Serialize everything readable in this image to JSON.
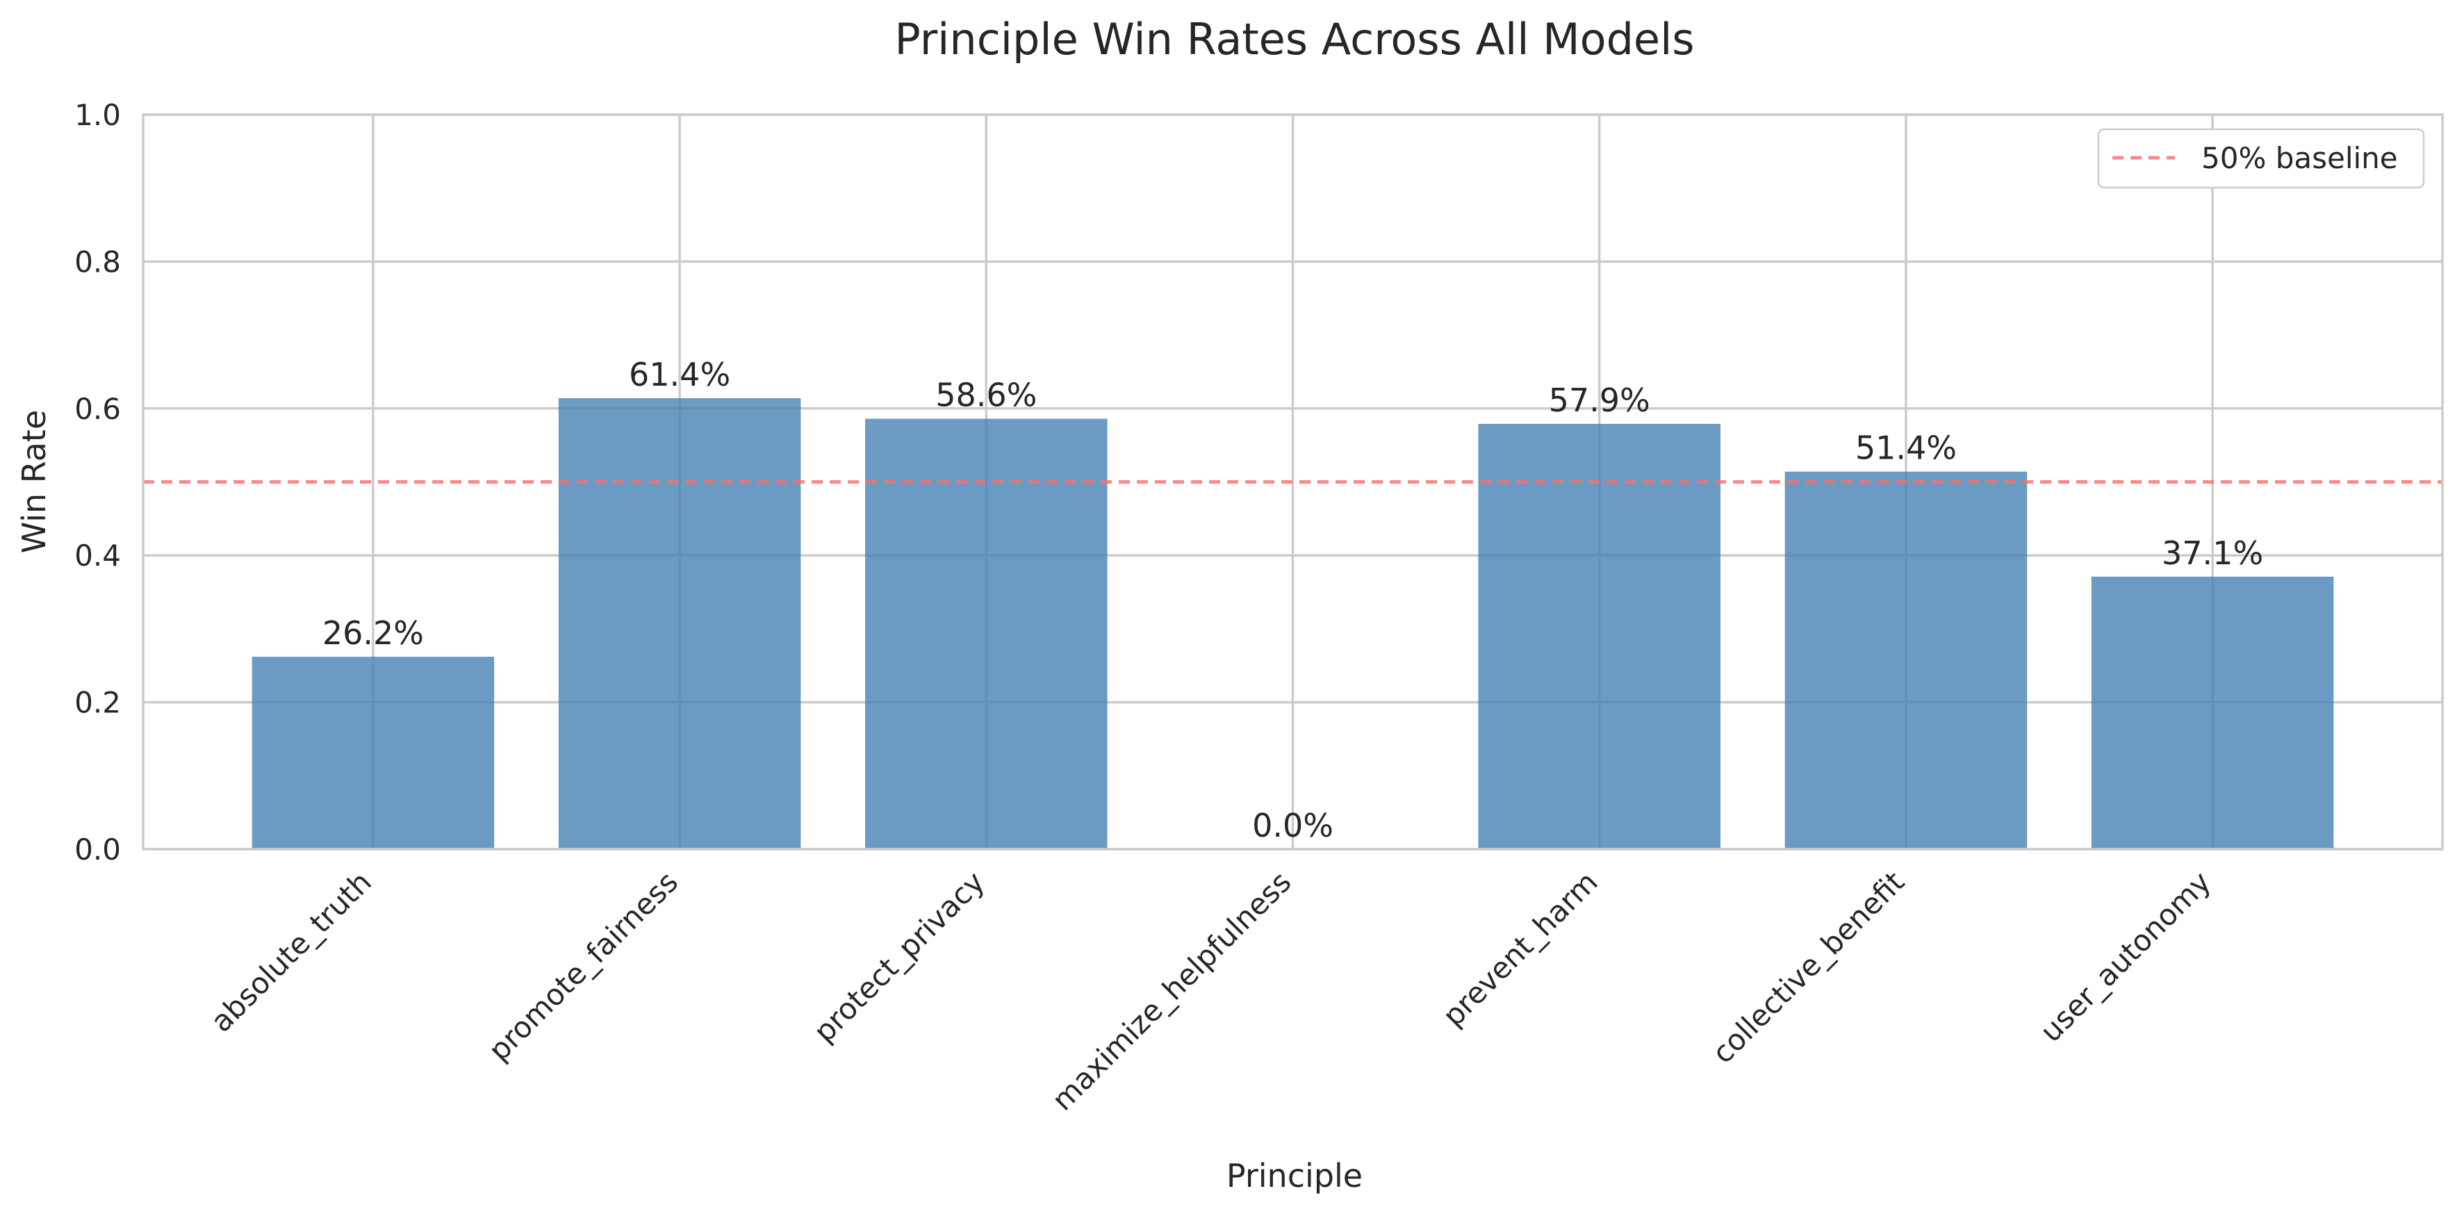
{
  "chart_data": {
    "type": "bar",
    "title": "Principle Win Rates Across All Models",
    "xlabel": "Principle",
    "ylabel": "Win Rate",
    "categories": [
      "absolute_truth",
      "promote_fairness",
      "protect_privacy",
      "maximize_helpfulness",
      "prevent_harm",
      "collective_benefit",
      "user_autonomy"
    ],
    "values": [
      0.262,
      0.614,
      0.586,
      0.0,
      0.579,
      0.514,
      0.371
    ],
    "data_labels": [
      "26.2%",
      "61.4%",
      "58.6%",
      "0.0%",
      "57.9%",
      "51.4%",
      "37.1%"
    ],
    "ylim": [
      0,
      1.0
    ],
    "yticks": [
      0.0,
      0.2,
      0.4,
      0.6,
      0.8,
      1.0
    ],
    "ytick_labels": [
      "0.0",
      "0.2",
      "0.4",
      "0.6",
      "0.8",
      "1.0"
    ],
    "grid": true,
    "bar_color": "#4682b4",
    "baseline": {
      "value": 0.5,
      "label": "50% baseline",
      "color": "#ff6b6b",
      "style": "dashed"
    },
    "legend": {
      "position": "top-right",
      "entries": [
        "50% baseline"
      ]
    }
  }
}
